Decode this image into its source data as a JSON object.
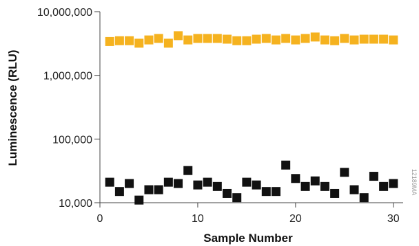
{
  "side_code": "12189MA",
  "chart_data": {
    "type": "scatter",
    "title": "",
    "xlabel": "Sample Number",
    "ylabel": "Luminescence (RLU)",
    "xlim": [
      0,
      31
    ],
    "ylim": [
      10000,
      10000000
    ],
    "yscale": "log",
    "x_ticks": [
      0,
      10,
      20,
      30
    ],
    "x_tick_labels": [
      "0",
      "10",
      "20",
      "30"
    ],
    "y_ticks": [
      10000,
      100000,
      1000000,
      10000000
    ],
    "y_tick_labels": [
      "10,000",
      "100,000",
      "1,000,000",
      "10,000,000"
    ],
    "grid": false,
    "legend": "none",
    "marker": "square",
    "series": [
      {
        "color": "#f5b21f",
        "points": [
          [
            1,
            3400000
          ],
          [
            2,
            3500000
          ],
          [
            3,
            3500000
          ],
          [
            4,
            3200000
          ],
          [
            5,
            3600000
          ],
          [
            6,
            3800000
          ],
          [
            7,
            3200000
          ],
          [
            8,
            4200000
          ],
          [
            9,
            3600000
          ],
          [
            10,
            3800000
          ],
          [
            11,
            3800000
          ],
          [
            12,
            3800000
          ],
          [
            13,
            3700000
          ],
          [
            14,
            3500000
          ],
          [
            15,
            3500000
          ],
          [
            16,
            3700000
          ],
          [
            17,
            3800000
          ],
          [
            18,
            3600000
          ],
          [
            19,
            3800000
          ],
          [
            20,
            3600000
          ],
          [
            21,
            3800000
          ],
          [
            22,
            4000000
          ],
          [
            23,
            3600000
          ],
          [
            24,
            3500000
          ],
          [
            25,
            3800000
          ],
          [
            26,
            3600000
          ],
          [
            27,
            3700000
          ],
          [
            28,
            3700000
          ],
          [
            29,
            3700000
          ],
          [
            30,
            3600000
          ]
        ]
      },
      {
        "color": "#111111",
        "points": [
          [
            1,
            21000
          ],
          [
            2,
            15000
          ],
          [
            3,
            20000
          ],
          [
            4,
            11000
          ],
          [
            5,
            16000
          ],
          [
            6,
            16000
          ],
          [
            7,
            21000
          ],
          [
            8,
            20000
          ],
          [
            9,
            32000
          ],
          [
            10,
            19000
          ],
          [
            11,
            21000
          ],
          [
            12,
            18000
          ],
          [
            13,
            14000
          ],
          [
            14,
            12000
          ],
          [
            15,
            21000
          ],
          [
            16,
            19000
          ],
          [
            17,
            15000
          ],
          [
            18,
            15000
          ],
          [
            19,
            39000
          ],
          [
            20,
            24000
          ],
          [
            21,
            18000
          ],
          [
            22,
            22000
          ],
          [
            23,
            18000
          ],
          [
            24,
            14000
          ],
          [
            25,
            30000
          ],
          [
            26,
            16000
          ],
          [
            27,
            12000
          ],
          [
            28,
            26000
          ],
          [
            29,
            18000
          ],
          [
            30,
            20000
          ]
        ]
      }
    ]
  }
}
